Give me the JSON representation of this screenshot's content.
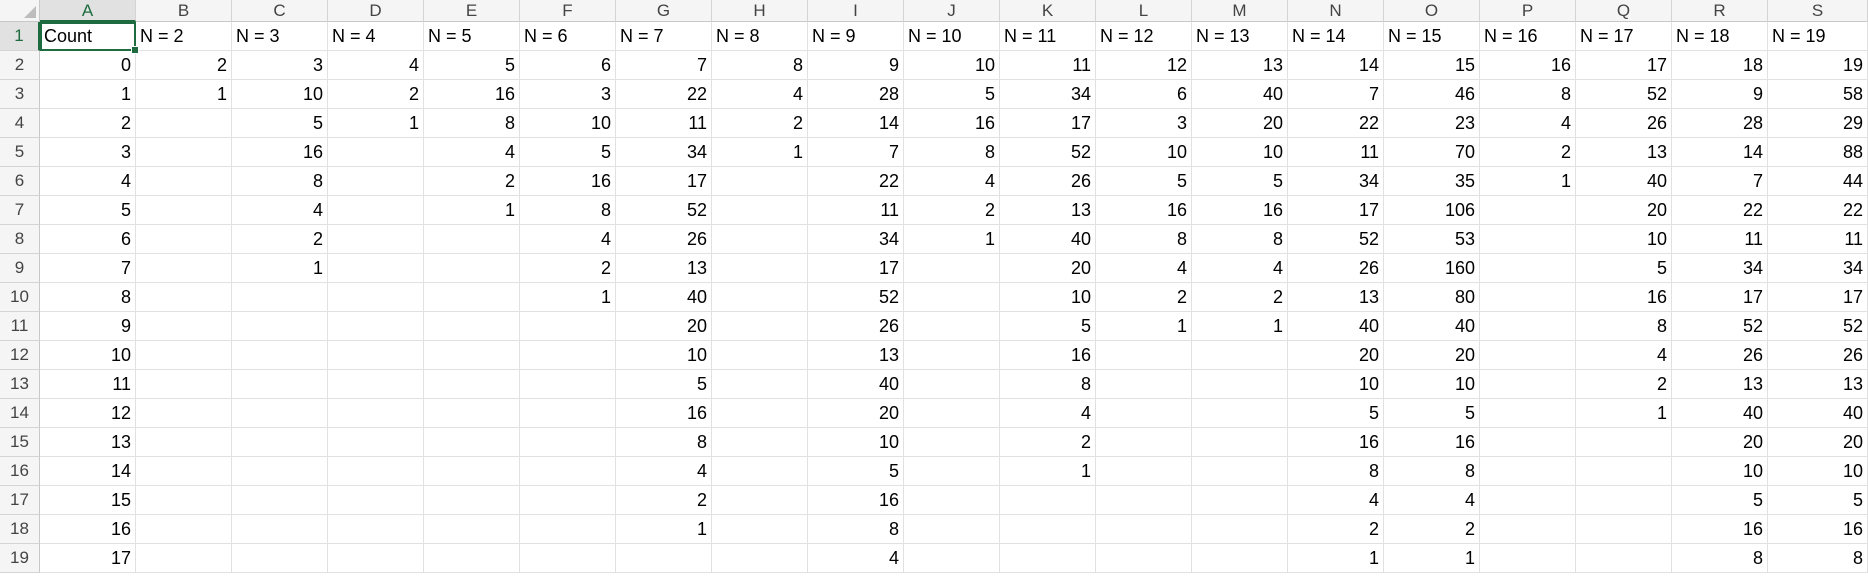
{
  "sheet": {
    "active_cell": "A1",
    "accent_color": "#1e6b3f",
    "columns": [
      "A",
      "B",
      "C",
      "D",
      "E",
      "F",
      "G",
      "H",
      "I",
      "J",
      "K",
      "L",
      "M",
      "N",
      "O",
      "P",
      "Q",
      "R",
      "S"
    ],
    "row_numbers": [
      "1",
      "2",
      "3",
      "4",
      "5",
      "6",
      "7",
      "8",
      "9",
      "10",
      "11",
      "12",
      "13",
      "14",
      "15",
      "16",
      "17",
      "18",
      "19"
    ],
    "header_row": [
      "Count",
      "N = 2",
      "N = 3",
      "N = 4",
      "N = 5",
      "N = 6",
      "N = 7",
      "N = 8",
      "N = 9",
      "N = 10",
      "N = 11",
      "N = 12",
      "N = 13",
      "N = 14",
      "N = 15",
      "N = 16",
      "N = 17",
      "N = 18",
      "N = 19"
    ],
    "rows": [
      [
        "0",
        "2",
        "3",
        "4",
        "5",
        "6",
        "7",
        "8",
        "9",
        "10",
        "11",
        "12",
        "13",
        "14",
        "15",
        "16",
        "17",
        "18",
        "19"
      ],
      [
        "1",
        "1",
        "10",
        "2",
        "16",
        "3",
        "22",
        "4",
        "28",
        "5",
        "34",
        "6",
        "40",
        "7",
        "46",
        "8",
        "52",
        "9",
        "58"
      ],
      [
        "2",
        "",
        "5",
        "1",
        "8",
        "10",
        "11",
        "2",
        "14",
        "16",
        "17",
        "3",
        "20",
        "22",
        "23",
        "4",
        "26",
        "28",
        "29"
      ],
      [
        "3",
        "",
        "16",
        "",
        "4",
        "5",
        "34",
        "1",
        "7",
        "8",
        "52",
        "10",
        "10",
        "11",
        "70",
        "2",
        "13",
        "14",
        "88"
      ],
      [
        "4",
        "",
        "8",
        "",
        "2",
        "16",
        "17",
        "",
        "22",
        "4",
        "26",
        "5",
        "5",
        "34",
        "35",
        "1",
        "40",
        "7",
        "44"
      ],
      [
        "5",
        "",
        "4",
        "",
        "1",
        "8",
        "52",
        "",
        "11",
        "2",
        "13",
        "16",
        "16",
        "17",
        "106",
        "",
        "20",
        "22",
        "22"
      ],
      [
        "6",
        "",
        "2",
        "",
        "",
        "4",
        "26",
        "",
        "34",
        "1",
        "40",
        "8",
        "8",
        "52",
        "53",
        "",
        "10",
        "11",
        "11"
      ],
      [
        "7",
        "",
        "1",
        "",
        "",
        "2",
        "13",
        "",
        "17",
        "",
        "20",
        "4",
        "4",
        "26",
        "160",
        "",
        "5",
        "34",
        "34"
      ],
      [
        "8",
        "",
        "",
        "",
        "",
        "1",
        "40",
        "",
        "52",
        "",
        "10",
        "2",
        "2",
        "13",
        "80",
        "",
        "16",
        "17",
        "17"
      ],
      [
        "9",
        "",
        "",
        "",
        "",
        "",
        "20",
        "",
        "26",
        "",
        "5",
        "1",
        "1",
        "40",
        "40",
        "",
        "8",
        "52",
        "52"
      ],
      [
        "10",
        "",
        "",
        "",
        "",
        "",
        "10",
        "",
        "13",
        "",
        "16",
        "",
        "",
        "20",
        "20",
        "",
        "4",
        "26",
        "26"
      ],
      [
        "11",
        "",
        "",
        "",
        "",
        "",
        "5",
        "",
        "40",
        "",
        "8",
        "",
        "",
        "10",
        "10",
        "",
        "2",
        "13",
        "13"
      ],
      [
        "12",
        "",
        "",
        "",
        "",
        "",
        "16",
        "",
        "20",
        "",
        "4",
        "",
        "",
        "5",
        "5",
        "",
        "1",
        "40",
        "40"
      ],
      [
        "13",
        "",
        "",
        "",
        "",
        "",
        "8",
        "",
        "10",
        "",
        "2",
        "",
        "",
        "16",
        "16",
        "",
        "",
        "20",
        "20"
      ],
      [
        "14",
        "",
        "",
        "",
        "",
        "",
        "4",
        "",
        "5",
        "",
        "1",
        "",
        "",
        "8",
        "8",
        "",
        "",
        "10",
        "10"
      ],
      [
        "15",
        "",
        "",
        "",
        "",
        "",
        "2",
        "",
        "16",
        "",
        "",
        "",
        "",
        "4",
        "4",
        "",
        "",
        "5",
        "5"
      ],
      [
        "16",
        "",
        "",
        "",
        "",
        "",
        "1",
        "",
        "8",
        "",
        "",
        "",
        "",
        "2",
        "2",
        "",
        "",
        "16",
        "16"
      ],
      [
        "17",
        "",
        "",
        "",
        "",
        "",
        "",
        "",
        "4",
        "",
        "",
        "",
        "",
        "1",
        "1",
        "",
        "",
        "8",
        "8"
      ]
    ]
  }
}
